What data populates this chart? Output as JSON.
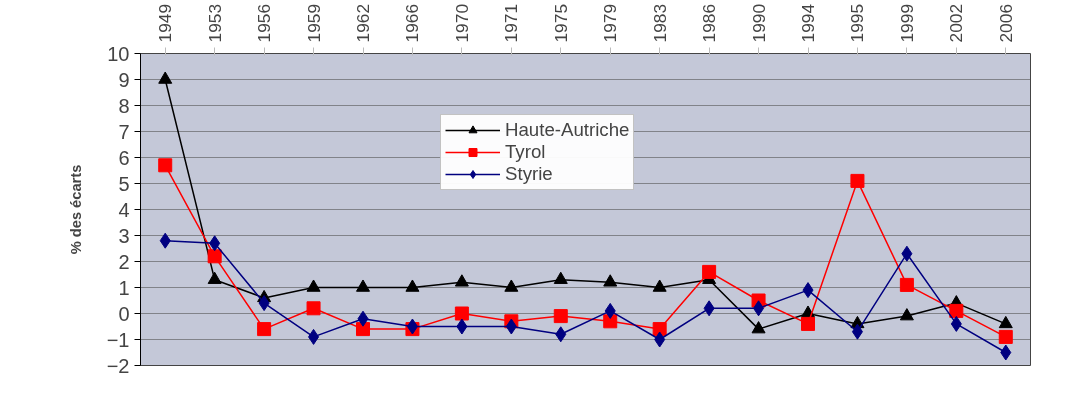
{
  "chart_data": {
    "type": "line",
    "ylabel": "% des écarts",
    "categories": [
      "1949",
      "1953",
      "1956",
      "1959",
      "1962",
      "1966",
      "1970",
      "1971",
      "1975",
      "1979",
      "1983",
      "1986",
      "1990",
      "1994",
      "1995",
      "1999",
      "2002",
      "2006"
    ],
    "series": [
      {
        "name": "Haute-Autriche",
        "color": "#000000",
        "marker": "triangle",
        "values": [
          9,
          1.3,
          0.6,
          1,
          1,
          1,
          1.2,
          1,
          1.3,
          1.2,
          1,
          1.3,
          -0.6,
          0,
          -0.4,
          -0.1,
          0.4,
          -0.4
        ]
      },
      {
        "name": "Tyrol",
        "color": "#ff0000",
        "marker": "square",
        "values": [
          5.7,
          2.2,
          -0.6,
          0.2,
          -0.6,
          -0.6,
          0,
          -0.3,
          -0.1,
          -0.3,
          -0.6,
          1.6,
          0.5,
          -0.4,
          5.1,
          1.1,
          0.1,
          -0.9
        ]
      },
      {
        "name": "Styrie",
        "color": "#000080",
        "marker": "diamond",
        "values": [
          2.8,
          2.7,
          0.4,
          -0.9,
          -0.2,
          -0.5,
          -0.5,
          -0.5,
          -0.8,
          0.1,
          -1,
          0.2,
          0.2,
          0.9,
          -0.7,
          2.3,
          -0.4,
          -1.5
        ]
      }
    ],
    "ylim": [
      -2,
      10
    ],
    "yticks": [
      -2,
      -1,
      0,
      1,
      2,
      3,
      4,
      5,
      6,
      7,
      8,
      9,
      10
    ],
    "grid": "y",
    "legend": "top",
    "line_style": "solid"
  }
}
